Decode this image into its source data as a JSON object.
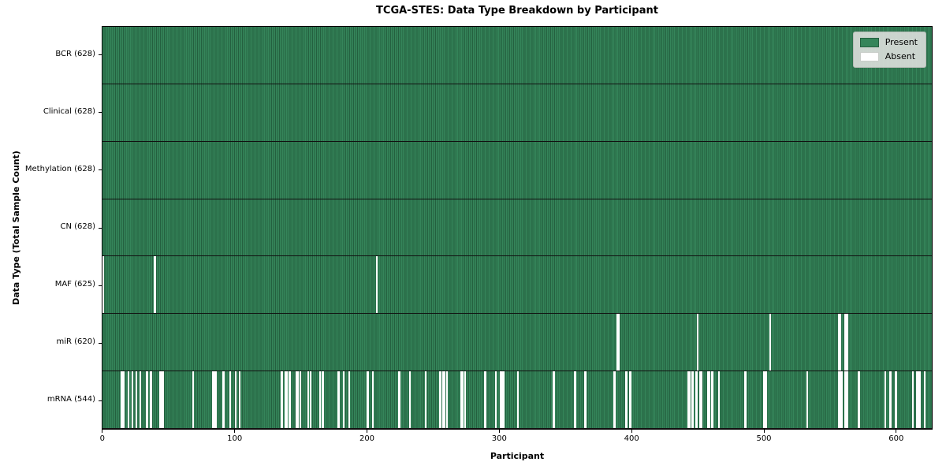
{
  "chart_data": {
    "type": "heatmap",
    "title": "TCGA-STES: Data Type Breakdown by Participant",
    "xlabel": "Participant",
    "ylabel": "Data Type (Total Sample Count)",
    "n_participants": 628,
    "x_ticks": [
      0,
      100,
      200,
      300,
      400,
      500,
      600
    ],
    "legend": {
      "present_label": "Present",
      "absent_label": "Absent",
      "position": "upper right"
    },
    "colors": {
      "present": "#35855a",
      "present_edge": "#24603f",
      "absent": "#ffffff"
    },
    "rows": [
      {
        "label": "BCR (628)",
        "data_type": "BCR",
        "present_count": 628,
        "absent_participants": []
      },
      {
        "label": "Clinical (628)",
        "data_type": "Clinical",
        "present_count": 628,
        "absent_participants": []
      },
      {
        "label": "Methylation (628)",
        "data_type": "Methylation",
        "present_count": 628,
        "absent_participants": []
      },
      {
        "label": "CN (628)",
        "data_type": "CN",
        "present_count": 628,
        "absent_participants": []
      },
      {
        "label": "MAF (625)",
        "data_type": "MAF",
        "present_count": 625,
        "absent_participants": [
          0,
          39,
          207
        ]
      },
      {
        "label": "miR (620)",
        "data_type": "miR",
        "present_count": 620,
        "absent_participants": [
          389,
          390,
          450,
          505,
          557,
          558,
          562,
          563
        ]
      },
      {
        "label": "mRNA (544)",
        "data_type": "mRNA",
        "present_count": 544,
        "absent_participants": [
          14,
          15,
          19,
          22,
          25,
          28,
          33,
          36,
          43,
          45,
          68,
          83,
          85,
          91,
          96,
          100,
          103,
          135,
          138,
          139,
          141,
          146,
          147,
          149,
          155,
          157,
          164,
          166,
          178,
          182,
          186,
          200,
          204,
          224,
          232,
          244,
          255,
          257,
          258,
          260,
          271,
          272,
          274,
          289,
          297,
          301,
          302,
          303,
          314,
          341,
          357,
          365,
          387,
          396,
          399,
          443,
          444,
          446,
          449,
          452,
          453,
          458,
          459,
          461,
          466,
          486,
          500,
          501,
          502,
          533,
          557,
          558,
          559,
          562,
          563,
          572,
          592,
          596,
          600,
          613,
          616,
          617,
          618,
          622
        ]
      }
    ]
  }
}
